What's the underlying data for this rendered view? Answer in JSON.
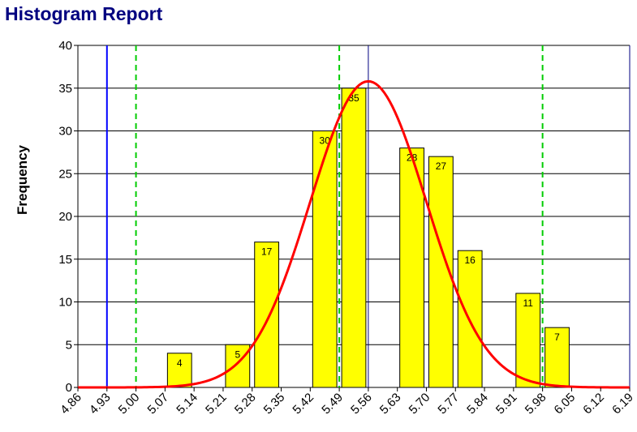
{
  "header": {
    "title": "Histogram Report"
  },
  "chart_data": {
    "type": "bar",
    "title": "Histogram Report",
    "xlabel": "",
    "ylabel": "Frequency",
    "ylim": [
      0,
      40
    ],
    "yticks": [
      "0",
      "5",
      "10",
      "15",
      "20",
      "25",
      "30",
      "35",
      "40"
    ],
    "xlim": [
      4.86,
      6.19
    ],
    "xticks": [
      "4.86",
      "4.93",
      "5.00",
      "5.07",
      "5.14",
      "5.21",
      "5.28",
      "5.35",
      "5.42",
      "5.49",
      "5.56",
      "5.63",
      "5.70",
      "5.77",
      "5.84",
      "5.91",
      "5.98",
      "6.05",
      "6.12",
      "6.19"
    ],
    "grid": "horizontal",
    "bars": [
      {
        "bin": "5.07",
        "value": 4
      },
      {
        "bin": "5.21",
        "value": 5
      },
      {
        "bin": "5.28",
        "value": 17
      },
      {
        "bin": "5.42",
        "value": 30
      },
      {
        "bin": "5.49",
        "value": 35
      },
      {
        "bin": "5.63",
        "value": 28
      },
      {
        "bin": "5.70",
        "value": 27
      },
      {
        "bin": "5.77",
        "value": 16
      },
      {
        "bin": "5.91",
        "value": 11
      },
      {
        "bin": "5.98",
        "value": 7
      }
    ],
    "normal_curve": {
      "mean": 5.56,
      "peak": 35.8,
      "sigma": 0.14,
      "color": "#ff0000"
    },
    "reference_lines": [
      {
        "x": 4.93,
        "color": "#0000ff",
        "style": "solid",
        "weight": "thick"
      },
      {
        "x": 5.56,
        "color": "#000080",
        "style": "solid",
        "weight": "thin"
      },
      {
        "x": 6.19,
        "color": "#000080",
        "style": "solid",
        "weight": "thin"
      },
      {
        "x": 5.0,
        "color": "#00cc00",
        "style": "dashed"
      },
      {
        "x": 5.49,
        "color": "#00cc00",
        "style": "dashed"
      },
      {
        "x": 5.98,
        "color": "#00cc00",
        "style": "dashed"
      }
    ],
    "colors": {
      "bar_fill": "#ffff00",
      "bar_stroke": "#000000",
      "title": "#000080"
    }
  }
}
